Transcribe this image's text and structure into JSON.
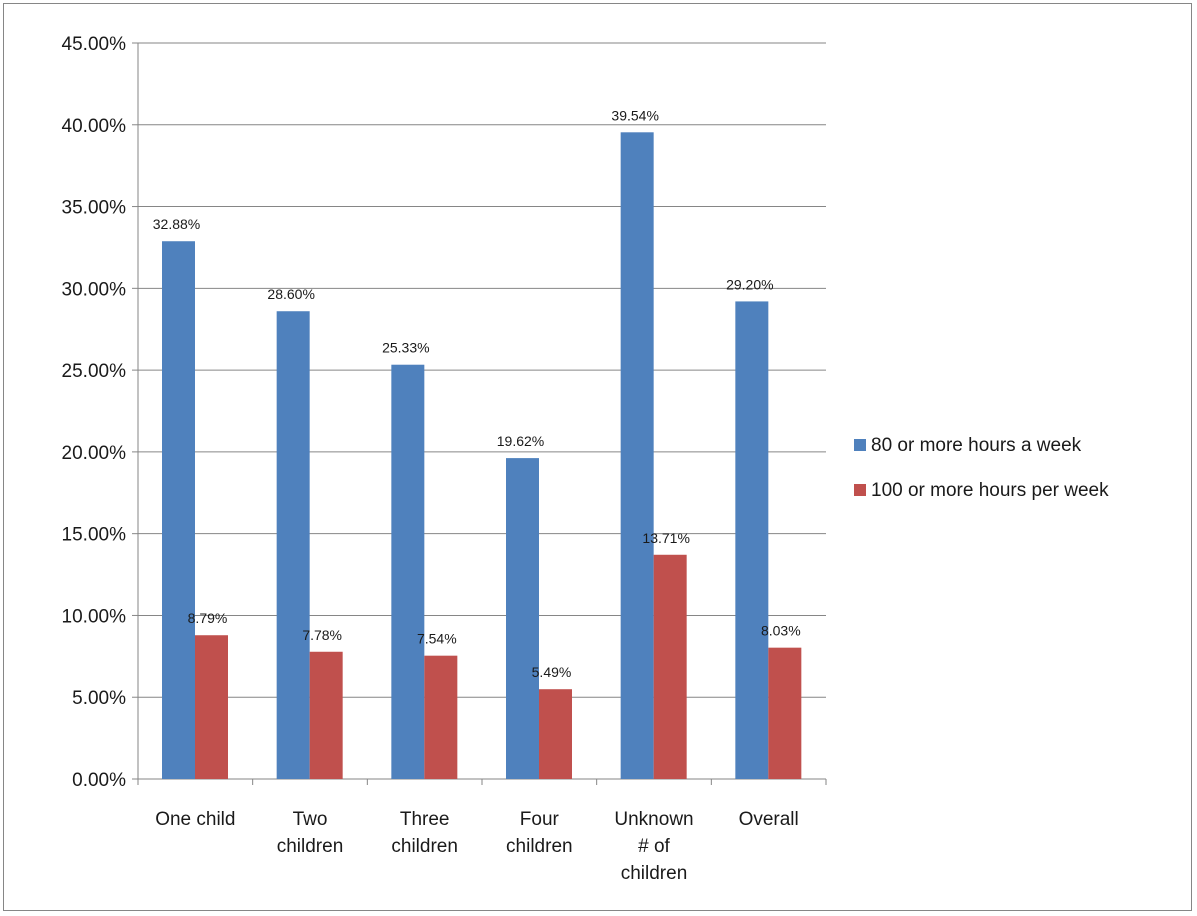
{
  "chart_data": {
    "type": "bar",
    "categories": [
      [
        "One child"
      ],
      [
        "Two",
        "children"
      ],
      [
        "Three",
        "children"
      ],
      [
        "Four",
        "children"
      ],
      [
        "Unknown",
        "# of",
        "children"
      ],
      [
        "Overall"
      ]
    ],
    "series": [
      {
        "name": "80 or more hours a week",
        "color": "#4F81BD",
        "values": [
          32.88,
          28.6,
          25.33,
          19.62,
          39.54,
          29.2
        ],
        "labels": [
          "32.88%",
          "28.60%",
          "25.33%",
          "19.62%",
          "39.54%",
          "29.20%"
        ]
      },
      {
        "name": "100 or more hours per week",
        "color": "#C0504D",
        "values": [
          8.79,
          7.78,
          7.54,
          5.49,
          13.71,
          8.03
        ],
        "labels": [
          "8.79%",
          "7.78%",
          "7.54%",
          "5.49%",
          "13.71%",
          "8.03%"
        ]
      }
    ],
    "ylim": [
      0,
      45
    ],
    "yticks": [
      {
        "value": 0,
        "label": "0.00%"
      },
      {
        "value": 5,
        "label": "5.00%"
      },
      {
        "value": 10,
        "label": "10.00%"
      },
      {
        "value": 15,
        "label": "15.00%"
      },
      {
        "value": 20,
        "label": "20.00%"
      },
      {
        "value": 25,
        "label": "25.00%"
      },
      {
        "value": 30,
        "label": "30.00%"
      },
      {
        "value": 35,
        "label": "35.00%"
      },
      {
        "value": 40,
        "label": "40.00%"
      },
      {
        "value": 45,
        "label": "45.00%"
      }
    ],
    "grid": true,
    "legend_position": "right",
    "title": "",
    "xlabel": "",
    "ylabel": ""
  }
}
